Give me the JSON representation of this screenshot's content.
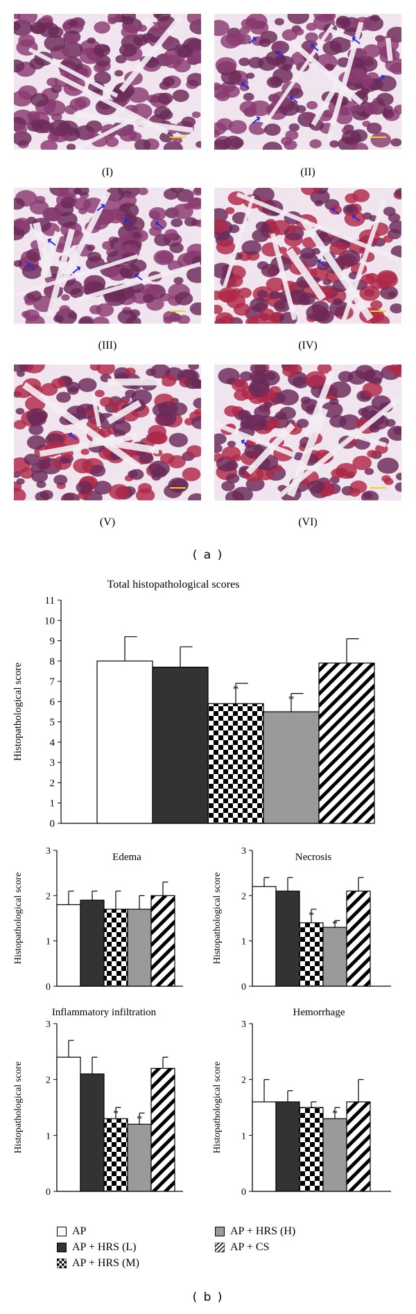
{
  "figure_a": {
    "panel_labels": [
      "(I)",
      "(II)",
      "(III)",
      "(IV)",
      "(V)",
      "(VI)"
    ],
    "part_label": "( a )"
  },
  "figure_b": {
    "part_label": "( b )"
  },
  "colors": {
    "tissue_bg": "#f0e4ee",
    "cell_dark": "#6a2a58",
    "cell_mid": "#8a3a70",
    "cell_red": "#b02848",
    "arrow": "#2a2ad8",
    "scalebar": "#e8d820",
    "bar_AP": "#ffffff",
    "bar_L": "#333333",
    "bar_H": "#9a9a9a"
  },
  "chart_data": [
    {
      "type": "bar",
      "title": "Total histopathological scores",
      "ylabel": "Histopathological score",
      "ylim": [
        0,
        11
      ],
      "yticks": [
        "0",
        "1",
        "2",
        "3",
        "4",
        "5",
        "6",
        "7",
        "8",
        "9",
        "10",
        "11"
      ],
      "categories": [
        "AP",
        "AP + HRS (L)",
        "AP + HRS (M)",
        "AP + HRS (H)",
        "AP + CS"
      ],
      "values": [
        8.0,
        7.7,
        5.9,
        5.5,
        7.9
      ],
      "errors": [
        1.2,
        1.0,
        1.0,
        0.9,
        1.2
      ],
      "significance": [
        "",
        "",
        "*",
        "*",
        ""
      ]
    },
    {
      "type": "bar",
      "title": "Edema",
      "ylabel": "Histopathological score",
      "ylim": [
        0,
        3
      ],
      "yticks": [
        "0",
        "1",
        "2",
        "3"
      ],
      "categories": [
        "AP",
        "AP + HRS (L)",
        "AP + HRS (M)",
        "AP + HRS (H)",
        "AP + CS"
      ],
      "values": [
        1.8,
        1.9,
        1.7,
        1.7,
        2.0
      ],
      "errors": [
        0.3,
        0.2,
        0.4,
        0.3,
        0.3
      ],
      "significance": [
        "",
        "",
        "",
        "",
        ""
      ]
    },
    {
      "type": "bar",
      "title": "Necrosis",
      "ylabel": "Histopathological score",
      "ylim": [
        0,
        3
      ],
      "yticks": [
        "0",
        "1",
        "2",
        "3"
      ],
      "categories": [
        "AP",
        "AP + HRS (L)",
        "AP + HRS (M)",
        "AP + HRS (H)",
        "AP + CS"
      ],
      "values": [
        2.2,
        2.1,
        1.4,
        1.3,
        2.1
      ],
      "errors": [
        0.2,
        0.3,
        0.3,
        0.15,
        0.3
      ],
      "significance": [
        "",
        "",
        "*",
        "*",
        ""
      ]
    },
    {
      "type": "bar",
      "title": "Inflammatory infiltration",
      "ylabel": "Histopathological score",
      "ylim": [
        0,
        3
      ],
      "yticks": [
        "0",
        "1",
        "2",
        "3"
      ],
      "categories": [
        "AP",
        "AP + HRS (L)",
        "AP + HRS (M)",
        "AP + HRS (H)",
        "AP + CS"
      ],
      "values": [
        2.4,
        2.1,
        1.3,
        1.2,
        2.2
      ],
      "errors": [
        0.3,
        0.3,
        0.2,
        0.2,
        0.2
      ],
      "significance": [
        "",
        "",
        "*",
        "*",
        ""
      ]
    },
    {
      "type": "bar",
      "title": "Hemorrhage",
      "ylabel": "Histopathological score",
      "ylim": [
        0,
        3
      ],
      "yticks": [
        "0",
        "1",
        "2",
        "3"
      ],
      "categories": [
        "AP",
        "AP + HRS (L)",
        "AP + HRS (M)",
        "AP + HRS (H)",
        "AP + CS"
      ],
      "values": [
        1.6,
        1.6,
        1.5,
        1.3,
        1.6
      ],
      "errors": [
        0.4,
        0.2,
        0.1,
        0.2,
        0.4
      ],
      "significance": [
        "",
        "",
        "",
        "*",
        ""
      ]
    }
  ],
  "legend": {
    "items": [
      {
        "label": "AP",
        "pattern": "white"
      },
      {
        "label": "AP + HRS (L)",
        "pattern": "dark"
      },
      {
        "label": "AP + HRS (M)",
        "pattern": "checker"
      },
      {
        "label": "AP + HRS (H)",
        "pattern": "gray"
      },
      {
        "label": "AP + CS",
        "pattern": "hatch"
      }
    ]
  }
}
